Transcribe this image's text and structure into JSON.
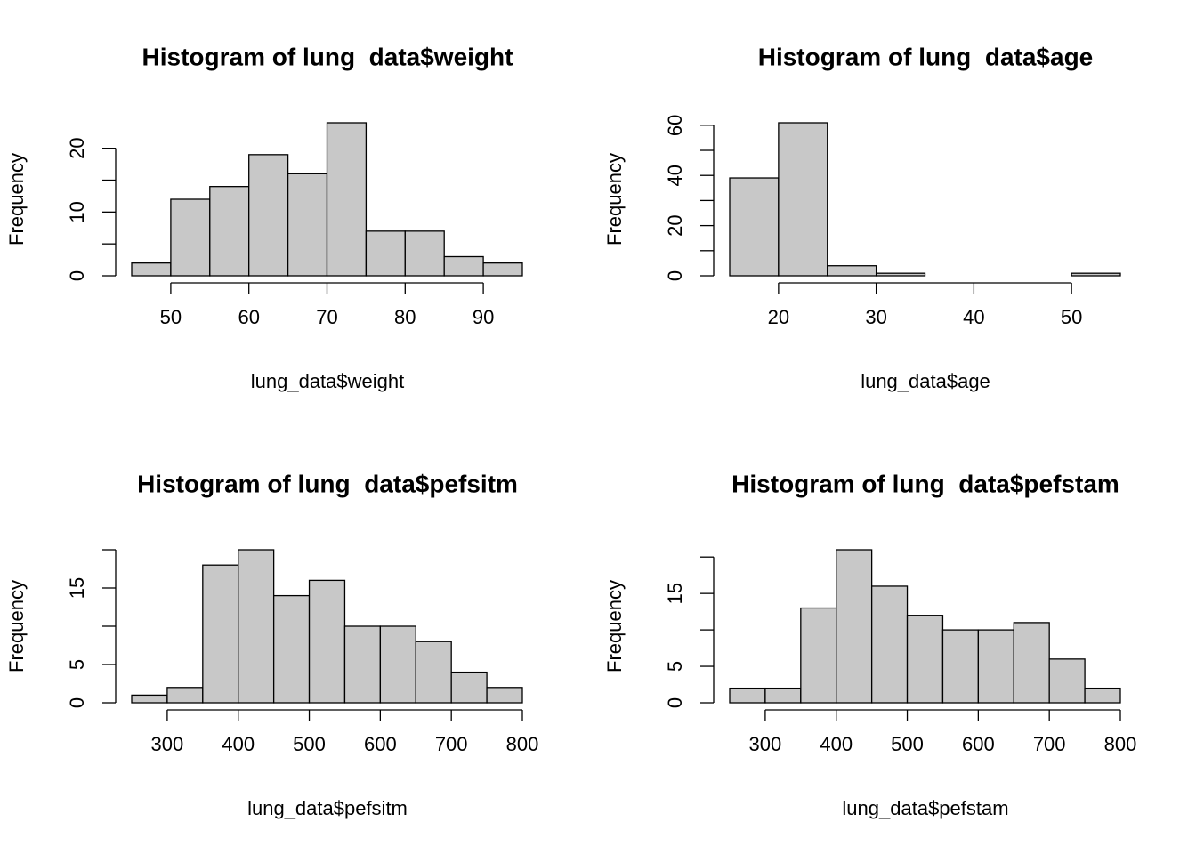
{
  "chart_data": [
    {
      "type": "histogram",
      "title": "Histogram of lung_data$weight",
      "x_label": "lung_data$weight",
      "y_label": "Frequency",
      "bins": [
        45,
        50,
        55,
        60,
        65,
        70,
        75,
        80,
        85,
        90,
        95
      ],
      "values": [
        2,
        12,
        14,
        19,
        16,
        24,
        7,
        7,
        3,
        2
      ],
      "color": "#c8c8c8",
      "xlim": [
        45,
        95
      ],
      "xticks": [
        50,
        60,
        70,
        80,
        90
      ],
      "ylim": [
        0,
        24
      ],
      "yticks": [
        0,
        10,
        20
      ],
      "yticks_unlabeled": [
        5,
        15
      ]
    },
    {
      "type": "histogram",
      "title": "Histogram of lung_data$age",
      "x_label": "lung_data$age",
      "y_label": "Frequency",
      "bins": [
        15,
        20,
        25,
        30,
        35,
        40,
        45,
        50,
        55
      ],
      "values": [
        39,
        61,
        4,
        1,
        0,
        0,
        0,
        1
      ],
      "color": "#c8c8c8",
      "xlim": [
        15,
        55
      ],
      "xticks": [
        20,
        30,
        40,
        50
      ],
      "ylim": [
        0,
        61
      ],
      "yticks": [
        0,
        20,
        40,
        60
      ],
      "yticks_unlabeled": [
        10,
        30,
        50
      ]
    },
    {
      "type": "histogram",
      "title": "Histogram of lung_data$pefsitm",
      "x_label": "lung_data$pefsitm",
      "y_label": "Frequency",
      "bins": [
        250,
        300,
        350,
        400,
        450,
        500,
        550,
        600,
        650,
        700,
        750,
        800
      ],
      "values": [
        1,
        2,
        18,
        20,
        14,
        16,
        10,
        10,
        8,
        4,
        2
      ],
      "color": "#c8c8c8",
      "xlim": [
        250,
        800
      ],
      "xticks": [
        300,
        400,
        500,
        600,
        700,
        800
      ],
      "ylim": [
        0,
        20
      ],
      "yticks": [
        0,
        5,
        15
      ],
      "yticks_unlabeled": [
        10,
        20
      ]
    },
    {
      "type": "histogram",
      "title": "Histogram of lung_data$pefstam",
      "x_label": "lung_data$pefstam",
      "y_label": "Frequency",
      "bins": [
        250,
        300,
        350,
        400,
        450,
        500,
        550,
        600,
        650,
        700,
        750,
        800
      ],
      "values": [
        2,
        2,
        13,
        21,
        16,
        12,
        10,
        10,
        11,
        6,
        2
      ],
      "color": "#c8c8c8",
      "xlim": [
        250,
        800
      ],
      "xticks": [
        300,
        400,
        500,
        600,
        700,
        800
      ],
      "ylim": [
        0,
        21
      ],
      "yticks": [
        0,
        5,
        15
      ],
      "yticks_unlabeled": [
        10,
        20
      ]
    }
  ]
}
